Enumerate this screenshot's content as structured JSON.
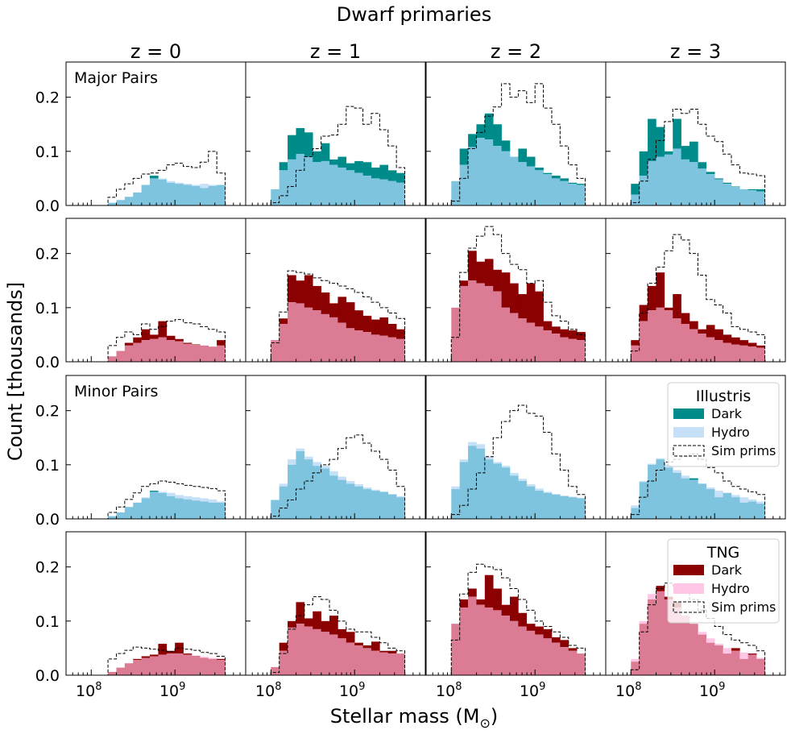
{
  "figure": {
    "title": "Dwarf primaries",
    "xlabel": "Stellar mass (M$_\\odot$)",
    "xlabel_main": "Stellar mass (M",
    "xlabel_sub": "⊙",
    "xlabel_close": ")",
    "ylabel": "Count [thousands]",
    "column_titles": [
      "z = 0",
      "z = 1",
      "z = 2",
      "z = 3"
    ],
    "row_labels": [
      "Major Pairs",
      "",
      "Minor Pairs",
      ""
    ],
    "y_ticks": [
      "0.0",
      "0.1",
      "0.2"
    ],
    "x_ticks": [
      "10",
      "10"
    ],
    "x_tick_exponents": [
      "8",
      "9"
    ]
  },
  "legends": [
    {
      "title": "Illustris",
      "entries": [
        "Dark",
        "Hydro",
        "Sim prims"
      ]
    },
    {
      "title": "TNG",
      "entries": [
        "Dark",
        "Hydro",
        "Sim prims"
      ]
    }
  ],
  "colors": {
    "illustris_dark": "#008b8b",
    "illustris_hydro": "#c6e0f7",
    "illustris_overlap": "#7ec4de",
    "tng_dark": "#8b0000",
    "tng_hydro": "#ffc6e6",
    "tng_overlap": "#db7b94"
  },
  "chart_data": {
    "type": "bar",
    "description_axes": "x: stellar mass on log scale; y: count in thousands",
    "xlim": [
      50000000,
      7000000000
    ],
    "ylim": [
      0,
      0.265
    ],
    "x_scale": "log",
    "bin_edges_log10": [
      8.0,
      8.1,
      8.2,
      8.3,
      8.4,
      8.5,
      8.6,
      8.7,
      8.8,
      8.9,
      9.0,
      9.1,
      9.2,
      9.3,
      9.4,
      9.5,
      9.6
    ],
    "panels": [
      {
        "row": 0,
        "col": 0,
        "sim": "Illustris",
        "pairs": "Major Pairs",
        "z": "z = 0",
        "dark": [
          0,
          0,
          0.005,
          0.01,
          0.016,
          0.024,
          0.038,
          0.055,
          0.048,
          0.042,
          0.04,
          0.038,
          0.036,
          0.032,
          0.036,
          0.038
        ],
        "hydro": [
          0,
          0,
          0.005,
          0.01,
          0.016,
          0.024,
          0.038,
          0.05,
          0.05,
          0.045,
          0.042,
          0.04,
          0.038,
          0.04,
          0.038,
          0.038
        ],
        "prims": [
          0,
          0,
          0.015,
          0.03,
          0.04,
          0.05,
          0.058,
          0.06,
          0.065,
          0.075,
          0.078,
          0.072,
          0.07,
          0.08,
          0.1,
          0.06
        ]
      },
      {
        "row": 0,
        "col": 1,
        "sim": "Illustris",
        "pairs": "Major Pairs",
        "z": "z = 1",
        "dark": [
          0.03,
          0.08,
          0.13,
          0.143,
          0.135,
          0.1,
          0.115,
          0.085,
          0.09,
          0.078,
          0.082,
          0.08,
          0.07,
          0.075,
          0.065,
          0.06
        ],
        "hydro": [
          0.03,
          0.065,
          0.085,
          0.095,
          0.09,
          0.08,
          0.082,
          0.075,
          0.07,
          0.065,
          0.06,
          0.055,
          0.05,
          0.048,
          0.045,
          0.042
        ],
        "prims": [
          0.005,
          0.018,
          0.035,
          0.065,
          0.09,
          0.105,
          0.128,
          0.13,
          0.15,
          0.183,
          0.18,
          0.15,
          0.17,
          0.14,
          0.11,
          0.07
        ]
      },
      {
        "row": 0,
        "col": 2,
        "sim": "Illustris",
        "pairs": "Major Pairs",
        "z": "z = 2",
        "dark": [
          0.045,
          0.105,
          0.132,
          0.15,
          0.17,
          0.15,
          0.12,
          0.09,
          0.105,
          0.09,
          0.07,
          0.06,
          0.055,
          0.05,
          0.042,
          0.04
        ],
        "hydro": [
          0.045,
          0.075,
          0.108,
          0.125,
          0.122,
          0.11,
          0.1,
          0.09,
          0.08,
          0.072,
          0.065,
          0.058,
          0.05,
          0.045,
          0.04,
          0.038
        ],
        "prims": [
          0.008,
          0.05,
          0.105,
          0.135,
          0.165,
          0.182,
          0.225,
          0.2,
          0.212,
          0.19,
          0.225,
          0.18,
          0.15,
          0.11,
          0.075,
          0.05
        ]
      },
      {
        "row": 0,
        "col": 3,
        "sim": "Illustris",
        "pairs": "Major Pairs",
        "z": "z = 3",
        "dark": [
          0.04,
          0.1,
          0.16,
          0.145,
          0.1,
          0.16,
          0.11,
          0.118,
          0.08,
          0.062,
          0.05,
          0.042,
          0.035,
          0.03,
          0.03,
          0.03
        ],
        "hydro": [
          0.02,
          0.055,
          0.082,
          0.09,
          0.094,
          0.105,
          0.085,
          0.08,
          0.068,
          0.058,
          0.048,
          0.04,
          0.034,
          0.03,
          0.028,
          0.026
        ],
        "prims": [
          0.005,
          0.045,
          0.085,
          0.12,
          0.155,
          0.178,
          0.17,
          0.178,
          0.15,
          0.128,
          0.118,
          0.095,
          0.075,
          0.06,
          0.058,
          0.055
        ]
      },
      {
        "row": 1,
        "col": 0,
        "sim": "TNG",
        "pairs": "Major Pairs",
        "z": "z = 0",
        "dark": [
          0,
          0,
          0.01,
          0.02,
          0.035,
          0.045,
          0.06,
          0.05,
          0.075,
          0.048,
          0.042,
          0.035,
          0.032,
          0.03,
          0.028,
          0.04
        ],
        "hydro": [
          0,
          0,
          0.01,
          0.02,
          0.03,
          0.035,
          0.04,
          0.042,
          0.045,
          0.04,
          0.038,
          0.033,
          0.031,
          0.03,
          0.028,
          0.03
        ],
        "prims": [
          0,
          0,
          0.03,
          0.045,
          0.055,
          0.05,
          0.07,
          0.06,
          0.065,
          0.075,
          0.078,
          0.072,
          0.07,
          0.065,
          0.06,
          0.055
        ]
      },
      {
        "row": 1,
        "col": 1,
        "sim": "TNG",
        "pairs": "Major Pairs",
        "z": "z = 1",
        "dark": [
          0.04,
          0.08,
          0.16,
          0.15,
          0.16,
          0.14,
          0.128,
          0.108,
          0.12,
          0.11,
          0.095,
          0.085,
          0.078,
          0.082,
          0.07,
          0.06
        ],
        "hydro": [
          0.04,
          0.07,
          0.11,
          0.108,
          0.1,
          0.095,
          0.088,
          0.082,
          0.072,
          0.062,
          0.058,
          0.055,
          0.05,
          0.048,
          0.045,
          0.042
        ],
        "prims": [
          0.035,
          0.092,
          0.168,
          0.165,
          0.162,
          0.155,
          0.15,
          0.145,
          0.14,
          0.135,
          0.128,
          0.12,
          0.11,
          0.1,
          0.09,
          0.08
        ]
      },
      {
        "row": 1,
        "col": 2,
        "sim": "TNG",
        "pairs": "Major Pairs",
        "z": "z = 2",
        "dark": [
          0.1,
          0.15,
          0.205,
          0.185,
          0.19,
          0.17,
          0.165,
          0.145,
          0.125,
          0.145,
          0.13,
          0.075,
          0.065,
          0.06,
          0.058,
          0.055
        ],
        "hydro": [
          0.1,
          0.14,
          0.15,
          0.145,
          0.14,
          0.13,
          0.1,
          0.09,
          0.08,
          0.072,
          0.065,
          0.058,
          0.052,
          0.045,
          0.042,
          0.04
        ],
        "prims": [
          0.045,
          0.165,
          0.21,
          0.232,
          0.25,
          0.235,
          0.2,
          0.18,
          0.17,
          0.145,
          0.15,
          0.11,
          0.085,
          0.075,
          0.06,
          0.05
        ]
      },
      {
        "row": 1,
        "col": 3,
        "sim": "TNG",
        "pairs": "Major Pairs",
        "z": "z = 3",
        "dark": [
          0.04,
          0.105,
          0.14,
          0.165,
          0.1,
          0.125,
          0.09,
          0.075,
          0.06,
          0.068,
          0.06,
          0.05,
          0.045,
          0.04,
          0.035,
          0.03
        ],
        "hydro": [
          0.03,
          0.075,
          0.095,
          0.1,
          0.095,
          0.08,
          0.07,
          0.06,
          0.052,
          0.045,
          0.04,
          0.035,
          0.032,
          0.03,
          0.028,
          0.026
        ],
        "prims": [
          0.02,
          0.09,
          0.145,
          0.175,
          0.205,
          0.235,
          0.225,
          0.2,
          0.16,
          0.115,
          0.105,
          0.09,
          0.065,
          0.06,
          0.055,
          0.05
        ]
      },
      {
        "row": 2,
        "col": 0,
        "sim": "Illustris",
        "pairs": "Minor Pairs",
        "z": "z = 0",
        "dark": [
          0,
          0,
          0.005,
          0.012,
          0.022,
          0.03,
          0.038,
          0.052,
          0.048,
          0.042,
          0.038,
          0.036,
          0.034,
          0.032,
          0.03,
          0.03
        ],
        "hydro": [
          0,
          0,
          0.005,
          0.012,
          0.022,
          0.03,
          0.04,
          0.05,
          0.05,
          0.048,
          0.044,
          0.042,
          0.04,
          0.038,
          0.036,
          0.032
        ],
        "prims": [
          0,
          0,
          0.012,
          0.022,
          0.036,
          0.048,
          0.06,
          0.065,
          0.07,
          0.068,
          0.065,
          0.062,
          0.06,
          0.058,
          0.056,
          0.052
        ]
      },
      {
        "row": 2,
        "col": 1,
        "sim": "Illustris",
        "pairs": "Minor Pairs",
        "z": "z = 1",
        "dark": [
          0.035,
          0.06,
          0.1,
          0.125,
          0.11,
          0.098,
          0.093,
          0.08,
          0.072,
          0.065,
          0.06,
          0.055,
          0.052,
          0.05,
          0.045,
          0.04
        ],
        "hydro": [
          0.035,
          0.065,
          0.11,
          0.13,
          0.115,
          0.105,
          0.098,
          0.088,
          0.078,
          0.07,
          0.064,
          0.058,
          0.054,
          0.05,
          0.046,
          0.042
        ],
        "prims": [
          0.005,
          0.02,
          0.035,
          0.055,
          0.07,
          0.085,
          0.1,
          0.11,
          0.13,
          0.15,
          0.155,
          0.14,
          0.125,
          0.11,
          0.09,
          0.06
        ]
      },
      {
        "row": 2,
        "col": 2,
        "sim": "Illustris",
        "pairs": "Minor Pairs",
        "z": "z = 2",
        "dark": [
          0.055,
          0.105,
          0.135,
          0.13,
          0.11,
          0.102,
          0.095,
          0.08,
          0.07,
          0.06,
          0.052,
          0.048,
          0.045,
          0.042,
          0.04,
          0.038
        ],
        "hydro": [
          0.06,
          0.11,
          0.142,
          0.138,
          0.115,
          0.105,
          0.098,
          0.085,
          0.074,
          0.064,
          0.056,
          0.05,
          0.046,
          0.043,
          0.041,
          0.039
        ],
        "prims": [
          0.008,
          0.025,
          0.055,
          0.085,
          0.115,
          0.15,
          0.18,
          0.2,
          0.21,
          0.195,
          0.19,
          0.16,
          0.12,
          0.09,
          0.06,
          0.045
        ]
      },
      {
        "row": 2,
        "col": 3,
        "sim": "Illustris",
        "pairs": "Minor Pairs",
        "z": "z = 3",
        "dark": [
          0.02,
          0.068,
          0.1,
          0.11,
          0.095,
          0.085,
          0.075,
          0.075,
          0.065,
          0.055,
          0.04,
          0.048,
          0.04,
          0.03,
          0.032,
          0.028
        ],
        "hydro": [
          0.025,
          0.07,
          0.102,
          0.112,
          0.1,
          0.09,
          0.08,
          0.072,
          0.065,
          0.058,
          0.052,
          0.048,
          0.044,
          0.04,
          0.036,
          0.032
        ],
        "prims": [
          0.008,
          0.04,
          0.07,
          0.09,
          0.105,
          0.11,
          0.115,
          0.12,
          0.11,
          0.095,
          0.085,
          0.07,
          0.06,
          0.055,
          0.05,
          0.045
        ]
      },
      {
        "row": 3,
        "col": 0,
        "sim": "TNG",
        "pairs": "Minor Pairs",
        "z": "z = 0",
        "dark": [
          0,
          0,
          0.006,
          0.014,
          0.022,
          0.03,
          0.035,
          0.038,
          0.058,
          0.045,
          0.06,
          0.04,
          0.036,
          0.032,
          0.03,
          0.03
        ],
        "hydro": [
          0,
          0,
          0.006,
          0.014,
          0.022,
          0.028,
          0.032,
          0.035,
          0.038,
          0.04,
          0.04,
          0.038,
          0.036,
          0.034,
          0.032,
          0.028
        ],
        "prims": [
          0,
          0,
          0.03,
          0.04,
          0.046,
          0.052,
          0.05,
          0.048,
          0.046,
          0.044,
          0.05,
          0.048,
          0.046,
          0.042,
          0.04,
          0.035
        ]
      },
      {
        "row": 3,
        "col": 1,
        "sim": "TNG",
        "pairs": "Minor Pairs",
        "z": "z = 1",
        "dark": [
          0.015,
          0.06,
          0.1,
          0.135,
          0.105,
          0.118,
          0.1,
          0.11,
          0.085,
          0.08,
          0.06,
          0.055,
          0.062,
          0.045,
          0.045,
          0.04
        ],
        "hydro": [
          0.015,
          0.045,
          0.088,
          0.095,
          0.09,
          0.085,
          0.08,
          0.075,
          0.068,
          0.06,
          0.055,
          0.05,
          0.045,
          0.042,
          0.04,
          0.04
        ],
        "prims": [
          0.005,
          0.04,
          0.085,
          0.11,
          0.13,
          0.145,
          0.14,
          0.12,
          0.1,
          0.085,
          0.08,
          0.08,
          0.07,
          0.06,
          0.05,
          0.045
        ]
      },
      {
        "row": 3,
        "col": 2,
        "sim": "TNG",
        "pairs": "Minor Pairs",
        "z": "z = 2",
        "dark": [
          0.095,
          0.14,
          0.16,
          0.14,
          0.185,
          0.16,
          0.13,
          0.145,
          0.115,
          0.095,
          0.09,
          0.085,
          0.07,
          0.065,
          0.05,
          0.04
        ],
        "hydro": [
          0.095,
          0.125,
          0.145,
          0.13,
          0.125,
          0.12,
          0.11,
          0.1,
          0.09,
          0.082,
          0.075,
          0.068,
          0.06,
          0.052,
          0.045,
          0.04
        ],
        "prims": [
          0.065,
          0.15,
          0.19,
          0.205,
          0.2,
          0.195,
          0.18,
          0.16,
          0.14,
          0.12,
          0.1,
          0.09,
          0.08,
          0.07,
          0.055,
          0.05
        ]
      },
      {
        "row": 3,
        "col": 3,
        "sim": "TNG",
        "pairs": "Minor Pairs",
        "z": "z = 3",
        "dark": [
          0.025,
          0.095,
          0.14,
          0.165,
          0.145,
          0.135,
          0.11,
          0.095,
          0.075,
          0.06,
          0.055,
          0.04,
          0.05,
          0.03,
          0.04,
          0.03
        ],
        "hydro": [
          0.03,
          0.1,
          0.15,
          0.155,
          0.14,
          0.125,
          0.11,
          0.095,
          0.08,
          0.068,
          0.058,
          0.05,
          0.045,
          0.042,
          0.038,
          0.032
        ],
        "prims": [
          0.01,
          0.08,
          0.13,
          0.16,
          0.17,
          0.165,
          0.155,
          0.14,
          0.12,
          0.105,
          0.09,
          0.075,
          0.065,
          0.06,
          0.055,
          0.045
        ]
      }
    ]
  }
}
